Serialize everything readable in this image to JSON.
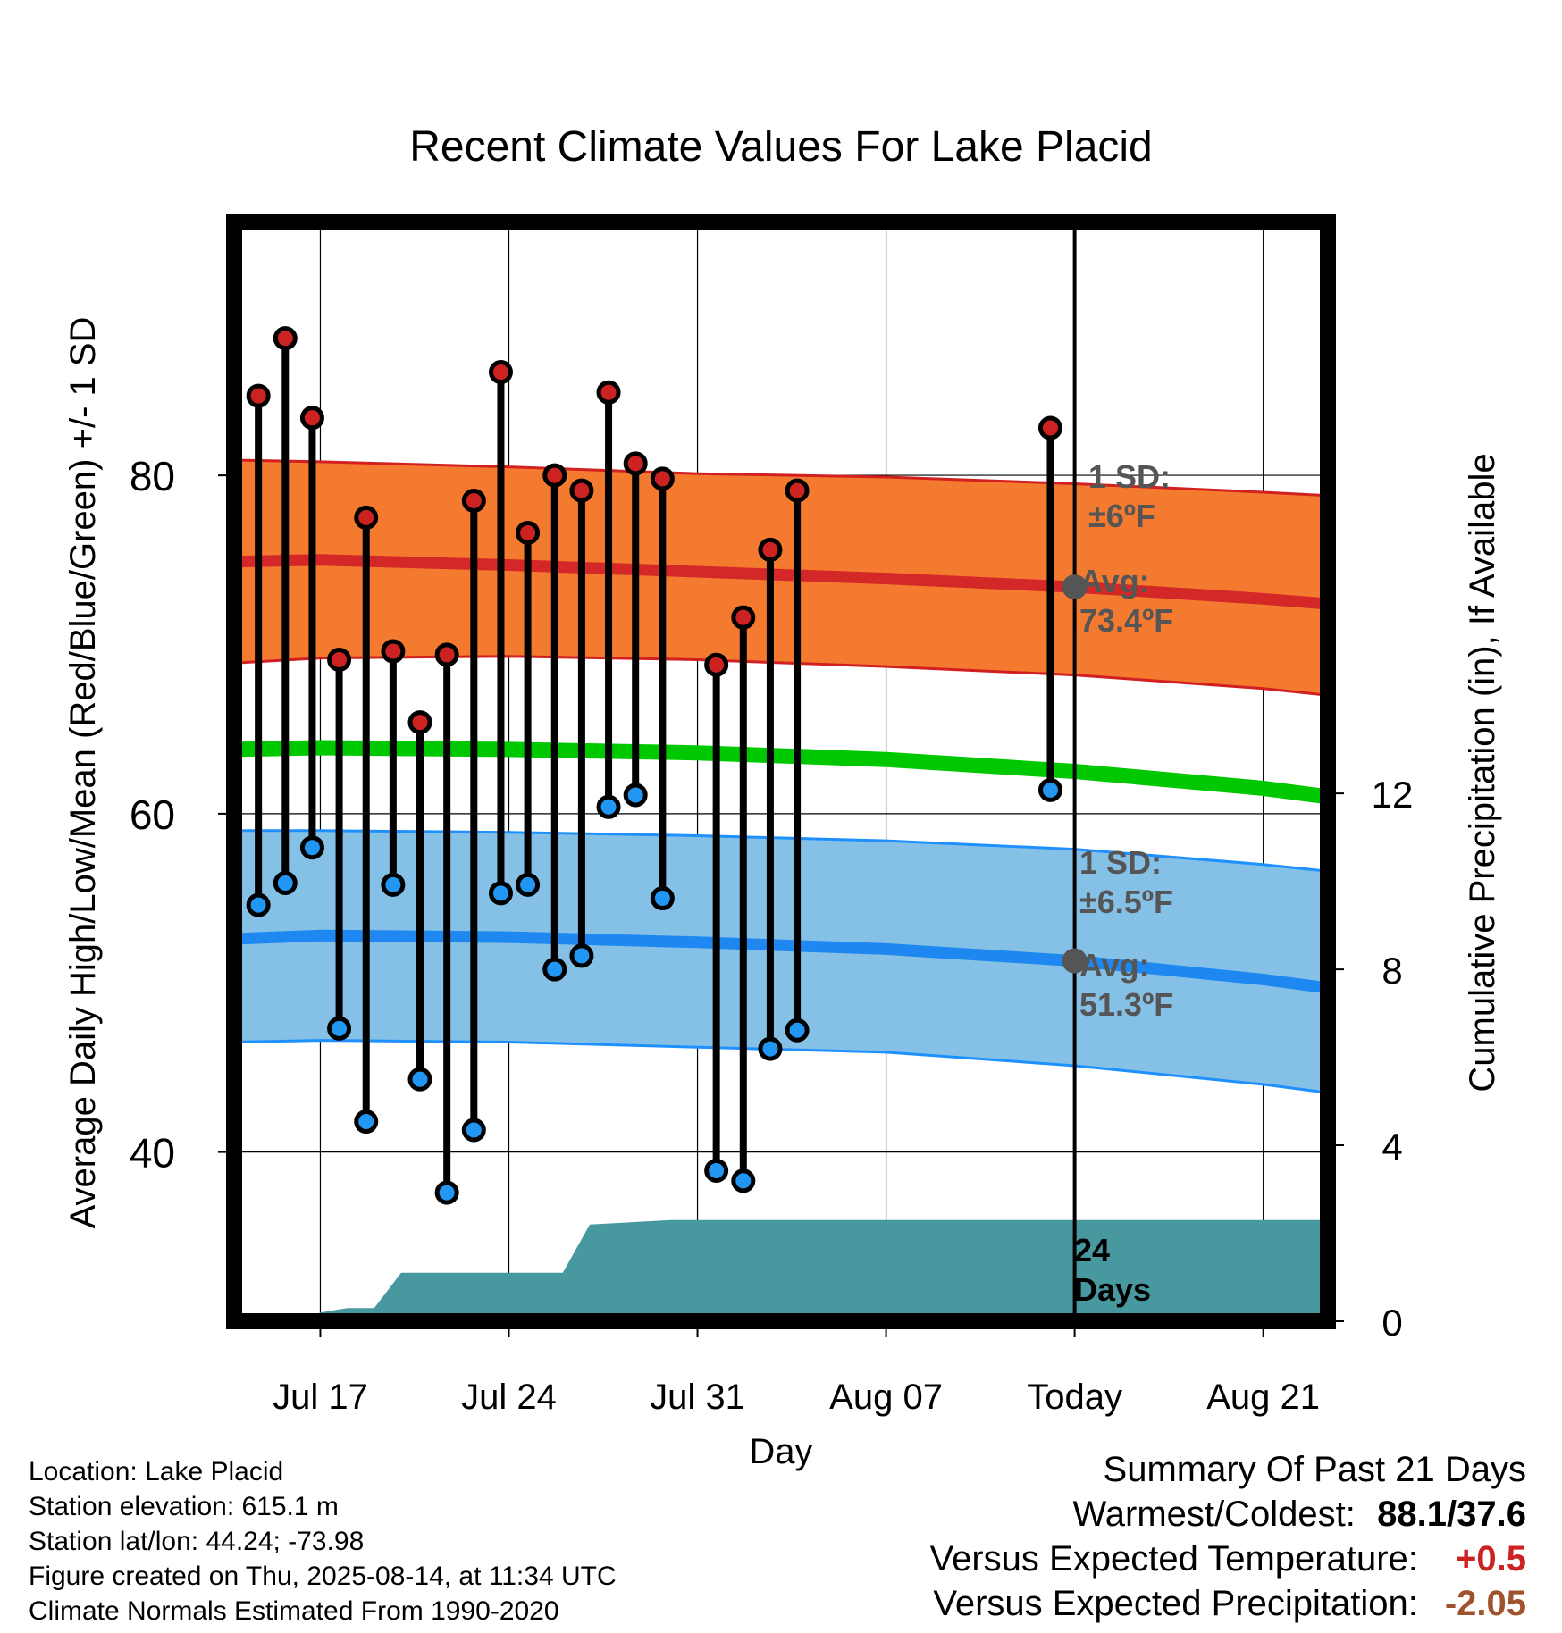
{
  "chart_data": {
    "type": "line",
    "title": "Recent Climate Values For Lake Placid",
    "xlabel": "Day",
    "ylabel": "Average Daily High/Low/Mean (Red/Blue/Green) +/- 1 SD",
    "y2label": "Cumulative Precipitation (in), If Available",
    "ylim": [
      30,
      95
    ],
    "y2lim": [
      0,
      25
    ],
    "x_tick_labels": [
      "Jul 17",
      "Jul 24",
      "Jul 31",
      "Aug 07",
      "Today",
      "Aug 21"
    ],
    "x_tick_days": [
      17,
      24,
      31,
      38,
      45,
      52
    ],
    "y_ticks": [
      40,
      60,
      80
    ],
    "y2_ticks": [
      0,
      4,
      8,
      12
    ],
    "x_range_days": [
      13.8,
      54.4
    ],
    "today_day": 45,
    "highs": [
      {
        "day": 14.7,
        "value": 84.7
      },
      {
        "day": 15.7,
        "value": 88.1
      },
      {
        "day": 16.7,
        "value": 83.4
      },
      {
        "day": 17.7,
        "value": 69.1
      },
      {
        "day": 18.7,
        "value": 77.5
      },
      {
        "day": 19.7,
        "value": 69.6
      },
      {
        "day": 20.7,
        "value": 65.4
      },
      {
        "day": 21.7,
        "value": 69.4
      },
      {
        "day": 22.7,
        "value": 78.5
      },
      {
        "day": 23.7,
        "value": 86.1
      },
      {
        "day": 24.7,
        "value": 76.6
      },
      {
        "day": 25.7,
        "value": 80.0
      },
      {
        "day": 26.7,
        "value": 79.1
      },
      {
        "day": 27.7,
        "value": 84.9
      },
      {
        "day": 28.7,
        "value": 80.7
      },
      {
        "day": 29.7,
        "value": 79.8
      },
      {
        "day": 31.7,
        "value": 68.8
      },
      {
        "day": 32.7,
        "value": 71.6
      },
      {
        "day": 33.7,
        "value": 75.6
      },
      {
        "day": 34.7,
        "value": 79.1
      },
      {
        "day": 44.1,
        "value": 82.8
      }
    ],
    "lows": [
      {
        "day": 14.7,
        "value": 54.6
      },
      {
        "day": 15.7,
        "value": 55.9
      },
      {
        "day": 16.7,
        "value": 58.0
      },
      {
        "day": 17.7,
        "value": 47.3
      },
      {
        "day": 18.7,
        "value": 41.8
      },
      {
        "day": 19.7,
        "value": 55.8
      },
      {
        "day": 20.7,
        "value": 44.3
      },
      {
        "day": 21.7,
        "value": 37.6
      },
      {
        "day": 22.7,
        "value": 41.3
      },
      {
        "day": 23.7,
        "value": 55.3
      },
      {
        "day": 24.7,
        "value": 55.8
      },
      {
        "day": 25.7,
        "value": 50.8
      },
      {
        "day": 26.7,
        "value": 51.6
      },
      {
        "day": 27.7,
        "value": 60.4
      },
      {
        "day": 28.7,
        "value": 61.1
      },
      {
        "day": 29.7,
        "value": 55.0
      },
      {
        "day": 31.7,
        "value": 38.9
      },
      {
        "day": 32.7,
        "value": 38.3
      },
      {
        "day": 33.7,
        "value": 46.1
      },
      {
        "day": 34.7,
        "value": 47.2
      },
      {
        "day": 44.1,
        "value": 61.4
      }
    ],
    "normal_high": {
      "x": [
        13.8,
        17,
        24,
        31,
        38,
        45,
        52,
        54.4
      ],
      "mean": [
        74.9,
        75.0,
        74.7,
        74.3,
        73.9,
        73.4,
        72.7,
        72.4
      ],
      "upper": [
        80.9,
        80.8,
        80.5,
        80.1,
        79.9,
        79.5,
        79.0,
        78.8
      ],
      "lower": [
        68.9,
        69.2,
        69.3,
        69.1,
        68.7,
        68.2,
        67.4,
        67.0
      ]
    },
    "normal_mean": {
      "x": [
        13.8,
        17,
        24,
        31,
        38,
        45,
        52,
        54.4
      ],
      "value": [
        63.8,
        63.9,
        63.8,
        63.6,
        63.2,
        62.5,
        61.5,
        61.0
      ]
    },
    "normal_low": {
      "x": [
        13.8,
        17,
        24,
        31,
        38,
        45,
        52,
        54.4
      ],
      "mean": [
        52.6,
        52.8,
        52.7,
        52.4,
        52.0,
        51.3,
        50.2,
        49.7
      ],
      "upper": [
        59.0,
        59.0,
        58.9,
        58.7,
        58.4,
        57.9,
        57.0,
        56.6
      ],
      "lower": [
        46.5,
        46.6,
        46.5,
        46.2,
        45.9,
        45.1,
        44.0,
        43.5
      ]
    },
    "precipitation": {
      "x": [
        13.8,
        16.3,
        17.0,
        18.0,
        19.0,
        20.0,
        21.0,
        22.0,
        23.0,
        24.0,
        25.0,
        26.0,
        27.0,
        30.0,
        54.4
      ],
      "y": [
        0,
        0,
        0.2,
        0.3,
        0.3,
        1.1,
        1.1,
        1.1,
        1.1,
        1.1,
        1.1,
        1.1,
        2.2,
        2.3,
        2.3
      ]
    },
    "annotations": {
      "high_sd_label": "1 SD:",
      "high_sd_value": "±6ºF",
      "high_avg_label": "Avg:",
      "high_avg_value": "73.4ºF",
      "low_sd_label": "1 SD:",
      "low_sd_value": "±6.5ºF",
      "low_avg_label": "Avg:",
      "low_avg_value": "51.3ºF",
      "days_count": "24",
      "days_word": "Days"
    }
  },
  "info": {
    "location": "Location: Lake Placid",
    "elevation": "Station elevation: 615.1 m",
    "latlon": "Station lat/lon: 44.24; -73.98",
    "created": "Figure created on Thu, 2025-08-14, at 11:34 UTC",
    "normals": "Climate Normals Estimated From 1990-2020"
  },
  "summary": {
    "title": "Summary Of Past 21 Days",
    "warm_cold_label": "Warmest/Coldest:",
    "warm_cold_value": "88.1/37.6",
    "temp_label": "Versus Expected Temperature:",
    "temp_value": "+0.5",
    "precip_label": "Versus Expected Precipitation:",
    "precip_value": "-2.05"
  },
  "colors": {
    "high_band": "#f47a30",
    "high_band_edge": "#d22020",
    "high_mean": "#d42828",
    "low_band": "#85c0e6",
    "low_band_edge": "#1e90ff",
    "low_mean": "#1e88f0",
    "mean_line": "#00c800",
    "precip": "#4898a0",
    "high_dot": "#cc2222",
    "low_dot": "#2196f3",
    "annotation": "#555555",
    "temp_summary": "#cc2222",
    "precip_summary": "#a0522d"
  }
}
